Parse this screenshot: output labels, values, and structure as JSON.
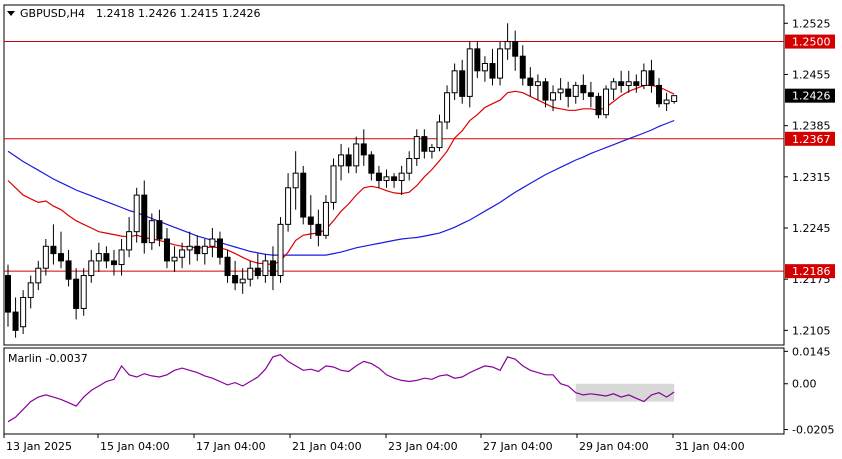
{
  "chart_data": {
    "type": "candlestick",
    "header": {
      "symbol": "GBPUSD,H4",
      "ohlc": [
        "1.2418",
        "1.2426",
        "1.2415",
        "1.2426"
      ]
    },
    "price_axis": {
      "ticks": [
        "1.2525",
        "1.2455",
        "1.2385",
        "1.2315",
        "1.2245",
        "1.2175",
        "1.2105"
      ],
      "range": [
        1.2085,
        1.255
      ]
    },
    "levels": [
      {
        "label": "1.2500",
        "value": 1.25
      },
      {
        "label": "1.2367",
        "value": 1.2367
      },
      {
        "label": "1.2186",
        "value": 1.2186
      }
    ],
    "current_price": {
      "label": "1.2426",
      "value": 1.2426
    },
    "time_axis": [
      "13 Jan 2025",
      "15 Jan 04:00",
      "17 Jan 04:00",
      "21 Jan 04:00",
      "23 Jan 04:00",
      "27 Jan 04:00",
      "29 Jan 04:00",
      "31 Jan 04:00"
    ],
    "candles": [
      [
        1.218,
        1.2195,
        1.211,
        1.213
      ],
      [
        1.213,
        1.215,
        1.2095,
        1.2105
      ],
      [
        1.211,
        1.216,
        1.21,
        1.215
      ],
      [
        1.215,
        1.218,
        1.2135,
        1.217
      ],
      [
        1.217,
        1.22,
        1.216,
        1.219
      ],
      [
        1.219,
        1.223,
        1.218,
        1.222
      ],
      [
        1.222,
        1.225,
        1.2195,
        1.221
      ],
      [
        1.221,
        1.224,
        1.219,
        1.22
      ],
      [
        1.22,
        1.2215,
        1.2165,
        1.2175
      ],
      [
        1.2175,
        1.219,
        1.212,
        1.2135
      ],
      [
        1.2135,
        1.219,
        1.2125,
        1.218
      ],
      [
        1.218,
        1.2215,
        1.217,
        1.22
      ],
      [
        1.22,
        1.2225,
        1.2185,
        1.221
      ],
      [
        1.221,
        1.222,
        1.219,
        1.22
      ],
      [
        1.22,
        1.2215,
        1.218,
        1.2195
      ],
      [
        1.2195,
        1.223,
        1.218,
        1.2215
      ],
      [
        1.2215,
        1.226,
        1.2205,
        1.224
      ],
      [
        1.224,
        1.23,
        1.2225,
        1.229
      ],
      [
        1.229,
        1.231,
        1.221,
        1.2225
      ],
      [
        1.2225,
        1.2265,
        1.2215,
        1.2255
      ],
      [
        1.2255,
        1.227,
        1.222,
        1.223
      ],
      [
        1.223,
        1.2245,
        1.219,
        1.22
      ],
      [
        1.22,
        1.222,
        1.2185,
        1.2205
      ],
      [
        1.2205,
        1.2225,
        1.219,
        1.2215
      ],
      [
        1.2215,
        1.224,
        1.2195,
        1.222
      ],
      [
        1.222,
        1.2235,
        1.22,
        1.221
      ],
      [
        1.221,
        1.223,
        1.2195,
        1.222
      ],
      [
        1.222,
        1.2245,
        1.2205,
        1.223
      ],
      [
        1.223,
        1.224,
        1.2195,
        1.2205
      ],
      [
        1.2205,
        1.2215,
        1.217,
        1.218
      ],
      [
        1.218,
        1.22,
        1.216,
        1.217
      ],
      [
        1.217,
        1.219,
        1.2155,
        1.2175
      ],
      [
        1.2175,
        1.22,
        1.2165,
        1.219
      ],
      [
        1.219,
        1.221,
        1.2175,
        1.218
      ],
      [
        1.218,
        1.221,
        1.217,
        1.22
      ],
      [
        1.22,
        1.222,
        1.216,
        1.218
      ],
      [
        1.218,
        1.226,
        1.217,
        1.225
      ],
      [
        1.225,
        1.232,
        1.224,
        1.23
      ],
      [
        1.23,
        1.235,
        1.227,
        1.232
      ],
      [
        1.232,
        1.233,
        1.225,
        1.226
      ],
      [
        1.226,
        1.229,
        1.223,
        1.225
      ],
      [
        1.225,
        1.227,
        1.222,
        1.2235
      ],
      [
        1.2235,
        1.229,
        1.223,
        1.228
      ],
      [
        1.228,
        1.234,
        1.227,
        1.233
      ],
      [
        1.233,
        1.236,
        1.231,
        1.2345
      ],
      [
        1.2345,
        1.2355,
        1.232,
        1.233
      ],
      [
        1.233,
        1.237,
        1.232,
        1.236
      ],
      [
        1.236,
        1.238,
        1.233,
        1.2345
      ],
      [
        1.2345,
        1.235,
        1.231,
        1.232
      ],
      [
        1.232,
        1.233,
        1.23,
        1.231
      ],
      [
        1.231,
        1.2325,
        1.23,
        1.2315
      ],
      [
        1.2315,
        1.232,
        1.23,
        1.231
      ],
      [
        1.231,
        1.233,
        1.229,
        1.232
      ],
      [
        1.232,
        1.235,
        1.231,
        1.234
      ],
      [
        1.234,
        1.238,
        1.233,
        1.237
      ],
      [
        1.237,
        1.238,
        1.234,
        1.235
      ],
      [
        1.235,
        1.236,
        1.234,
        1.2355
      ],
      [
        1.2355,
        1.24,
        1.235,
        1.239
      ],
      [
        1.239,
        1.244,
        1.238,
        1.243
      ],
      [
        1.243,
        1.247,
        1.242,
        1.246
      ],
      [
        1.246,
        1.2475,
        1.2415,
        1.2425
      ],
      [
        1.2425,
        1.25,
        1.241,
        1.249
      ],
      [
        1.249,
        1.25,
        1.245,
        1.246
      ],
      [
        1.246,
        1.248,
        1.2445,
        1.247
      ],
      [
        1.247,
        1.249,
        1.244,
        1.245
      ],
      [
        1.245,
        1.25,
        1.244,
        1.249
      ],
      [
        1.249,
        1.2525,
        1.2475,
        1.25
      ],
      [
        1.25,
        1.2515,
        1.246,
        1.248
      ],
      [
        1.248,
        1.2495,
        1.244,
        1.245
      ],
      [
        1.245,
        1.2465,
        1.2425,
        1.244
      ],
      [
        1.244,
        1.2455,
        1.242,
        1.2445
      ],
      [
        1.2445,
        1.245,
        1.241,
        1.242
      ],
      [
        1.242,
        1.244,
        1.2405,
        1.243
      ],
      [
        1.243,
        1.245,
        1.242,
        1.2435
      ],
      [
        1.2435,
        1.2445,
        1.241,
        1.2425
      ],
      [
        1.2425,
        1.2445,
        1.2415,
        1.244
      ],
      [
        1.244,
        1.2455,
        1.242,
        1.243
      ],
      [
        1.243,
        1.2445,
        1.241,
        1.2425
      ],
      [
        1.2425,
        1.243,
        1.2395,
        1.24
      ],
      [
        1.24,
        1.244,
        1.2395,
        1.2435
      ],
      [
        1.2435,
        1.245,
        1.242,
        1.2445
      ],
      [
        1.2445,
        1.246,
        1.243,
        1.244
      ],
      [
        1.244,
        1.246,
        1.243,
        1.2445
      ],
      [
        1.2445,
        1.2455,
        1.243,
        1.244
      ],
      [
        1.244,
        1.247,
        1.2435,
        1.246
      ],
      [
        1.246,
        1.2475,
        1.243,
        1.244
      ],
      [
        1.244,
        1.245,
        1.241,
        1.2415
      ],
      [
        1.2415,
        1.243,
        1.2405,
        1.242
      ],
      [
        1.2418,
        1.2426,
        1.2415,
        1.2426
      ]
    ],
    "ma_red": [
      1.231,
      1.23,
      1.229,
      1.2285,
      1.228,
      1.2282,
      1.2275,
      1.227,
      1.2262,
      1.2255,
      1.225,
      1.2245,
      1.224,
      1.2238,
      1.2236,
      1.2234,
      1.2233,
      1.2235,
      1.2232,
      1.223,
      1.2228,
      1.2225,
      1.2222,
      1.222,
      1.2219,
      1.2218,
      1.2218,
      1.2219,
      1.2218,
      1.2215,
      1.221,
      1.2205,
      1.22,
      1.2197,
      1.2196,
      1.2195,
      1.22,
      1.2212,
      1.2228,
      1.2235,
      1.2237,
      1.2238,
      1.2243,
      1.2255,
      1.2268,
      1.2278,
      1.229,
      1.23,
      1.2302,
      1.23,
      1.2296,
      1.2293,
      1.2292,
      1.2294,
      1.2303,
      1.2315,
      1.2325,
      1.2337,
      1.235,
      1.2368,
      1.2378,
      1.2392,
      1.24,
      1.241,
      1.2415,
      1.242,
      1.243,
      1.2432,
      1.243,
      1.2425,
      1.242,
      1.2415,
      1.241,
      1.2408,
      1.2406,
      1.2406,
      1.2408,
      1.2408,
      1.2406,
      1.241,
      1.2418,
      1.2426,
      1.2432,
      1.2436,
      1.244,
      1.244,
      1.2438,
      1.2433,
      1.2428
    ],
    "ma_blue": [
      1.235,
      1.2343,
      1.2336,
      1.233,
      1.2324,
      1.2318,
      1.2312,
      1.2307,
      1.2302,
      1.2297,
      1.2293,
      1.2289,
      1.2285,
      1.2281,
      1.2277,
      1.2273,
      1.2269,
      1.2266,
      1.2262,
      1.2258,
      1.2254,
      1.225,
      1.2246,
      1.2242,
      1.2238,
      1.2234,
      1.2231,
      1.2228,
      1.2225,
      1.2222,
      1.2219,
      1.2216,
      1.2213,
      1.2211,
      1.2209,
      1.2208,
      1.2208,
      1.2208,
      1.2208,
      1.2208,
      1.2208,
      1.2208,
      1.2208,
      1.221,
      1.2212,
      1.2215,
      1.2218,
      1.222,
      1.2222,
      1.2224,
      1.2226,
      1.2228,
      1.223,
      1.2231,
      1.2232,
      1.2234,
      1.2236,
      1.2238,
      1.2242,
      1.2246,
      1.2251,
      1.2256,
      1.2262,
      1.2268,
      1.2274,
      1.228,
      1.2287,
      1.2294,
      1.23,
      1.2306,
      1.2312,
      1.2318,
      1.2323,
      1.2328,
      1.2333,
      1.2338,
      1.2342,
      1.2347,
      1.2351,
      1.2355,
      1.2359,
      1.2363,
      1.2367,
      1.2371,
      1.2375,
      1.2379,
      1.2384,
      1.2388,
      1.2392
    ],
    "indicator": {
      "label": "Marlin -0.0037",
      "ticks": [
        "0.0145",
        "0.00",
        "-0.0205"
      ],
      "range": [
        -0.0225,
        0.016
      ],
      "values": [
        -0.017,
        -0.015,
        -0.0115,
        -0.008,
        -0.006,
        -0.005,
        -0.006,
        -0.007,
        -0.0085,
        -0.01,
        -0.006,
        -0.003,
        -0.001,
        0.001,
        0.002,
        0.008,
        0.004,
        0.003,
        0.0045,
        0.0035,
        0.003,
        0.004,
        0.006,
        0.007,
        0.006,
        0.005,
        0.0035,
        0.0025,
        0.001,
        -0.0005,
        0.0005,
        -0.001,
        0.001,
        0.003,
        0.0065,
        0.012,
        0.013,
        0.01,
        0.008,
        0.006,
        0.0065,
        0.0055,
        0.008,
        0.0075,
        0.006,
        0.0055,
        0.008,
        0.01,
        0.009,
        0.007,
        0.004,
        0.0025,
        0.0015,
        0.001,
        0.0015,
        0.0025,
        0.002,
        0.0035,
        0.004,
        0.0025,
        0.003,
        0.005,
        0.0065,
        0.008,
        0.0075,
        0.006,
        0.012,
        0.011,
        0.008,
        0.006,
        0.005,
        0.004,
        0.004,
        0.0,
        -0.001,
        -0.004,
        -0.005,
        -0.0045,
        -0.005,
        -0.0055,
        -0.0045,
        -0.006,
        -0.005,
        -0.0065,
        -0.008,
        -0.005,
        -0.004,
        -0.006,
        -0.0037
      ],
      "zone": {
        "from_index": 75,
        "to_index": 88,
        "top": 0.0,
        "bottom": -0.008
      }
    }
  },
  "colors": {
    "level_line": "#d40000",
    "current_tag": "#000000",
    "ma_red": "#e00000",
    "ma_blue": "#1a1ae0",
    "indicator": "#8a009e",
    "zone": "#d8d8d8",
    "bg": "#ffffff"
  }
}
